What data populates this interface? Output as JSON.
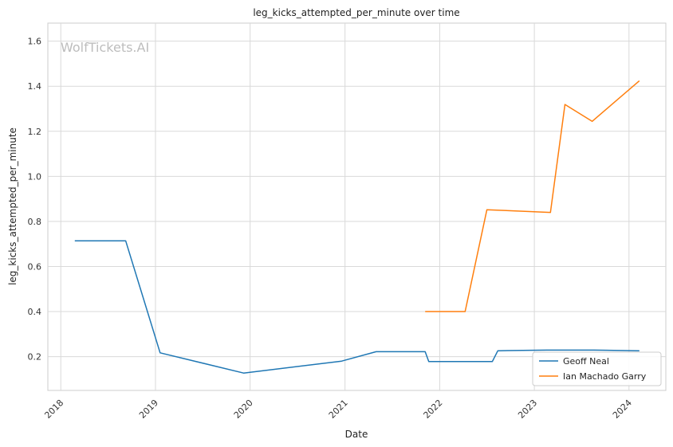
{
  "chart_data": {
    "type": "line",
    "title": "leg_kicks_attempted_per_minute over time",
    "xlabel": "Date",
    "ylabel": "leg_kicks_attempted_per_minute",
    "watermark": "WolfTickets.AI",
    "x_tick_labels": [
      "2018",
      "2019",
      "2020",
      "2021",
      "2022",
      "2023",
      "2024"
    ],
    "y_tick_labels": [
      "0.2",
      "0.4",
      "0.6",
      "0.8",
      "1.0",
      "1.2",
      "1.4",
      "1.6"
    ],
    "xlim": [
      "2017-11-12",
      "2024-05-22"
    ],
    "ylim": [
      0.05,
      1.68
    ],
    "grid": true,
    "legend_position": "bottom-right",
    "series": [
      {
        "name": "Geoff Neal",
        "color": "#1f77b4",
        "points": [
          [
            "2018-02-24",
            0.714
          ],
          [
            "2018-09-08",
            0.714
          ],
          [
            "2019-01-19",
            0.217
          ],
          [
            "2019-12-07",
            0.127
          ],
          [
            "2020-12-19",
            0.18
          ],
          [
            "2021-05-01",
            0.222
          ],
          [
            "2021-11-06",
            0.222
          ],
          [
            "2021-11-20",
            0.178
          ],
          [
            "2022-07-23",
            0.178
          ],
          [
            "2022-08-13",
            0.226
          ],
          [
            "2023-02-18",
            0.229
          ],
          [
            "2023-08-19",
            0.229
          ],
          [
            "2024-02-10",
            0.226
          ]
        ]
      },
      {
        "name": "Ian Machado Garry",
        "color": "#ff7f0e",
        "points": [
          [
            "2021-11-06",
            0.4
          ],
          [
            "2022-04-09",
            0.4
          ],
          [
            "2022-07-02",
            0.852
          ],
          [
            "2023-03-04",
            0.84
          ],
          [
            "2023-04-29",
            1.319
          ],
          [
            "2023-08-12",
            1.244
          ],
          [
            "2024-02-10",
            1.424
          ]
        ]
      }
    ]
  }
}
